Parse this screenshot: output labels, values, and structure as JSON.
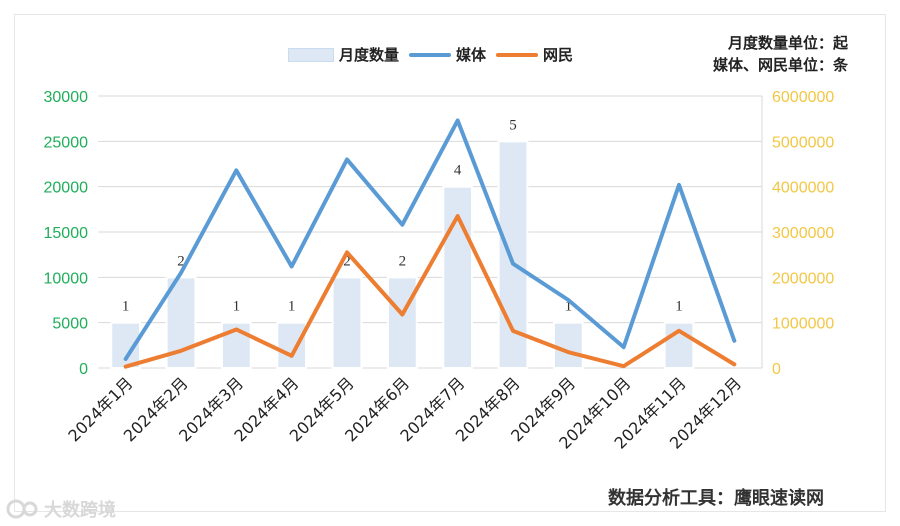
{
  "chart_data": {
    "type": "bar",
    "categories": [
      "2024年1月",
      "2024年2月",
      "2024年3月",
      "2024年4月",
      "2024年5月",
      "2024年6月",
      "2024年7月",
      "2024年8月",
      "2024年9月",
      "2024年10月",
      "2024年11月",
      "2024年12月"
    ],
    "series": [
      {
        "name": "月度数量",
        "type": "bar",
        "axis": "left",
        "values": [
          1,
          2,
          1,
          1,
          2,
          2,
          4,
          5,
          1,
          0,
          1,
          0
        ],
        "labels": [
          "1",
          "2",
          "1",
          "1",
          "2",
          "2",
          "4",
          "5",
          "1",
          "",
          "1",
          ""
        ],
        "color": "#dde8f4"
      },
      {
        "name": "媒体",
        "type": "line",
        "axis": "left",
        "values": [
          1000,
          10500,
          21800,
          11200,
          23000,
          15800,
          27300,
          11500,
          7500,
          2300,
          20200,
          3000
        ],
        "color": "#5b9bd5"
      },
      {
        "name": "网民",
        "type": "line",
        "axis": "right",
        "values": [
          30000,
          380000,
          850000,
          270000,
          2550000,
          1180000,
          3350000,
          820000,
          350000,
          40000,
          820000,
          80000
        ],
        "color": "#ed7d31"
      }
    ],
    "left_axis": {
      "ticks": [
        "0",
        "5000",
        "10000",
        "15000",
        "20000",
        "25000",
        "30000"
      ],
      "ylim": [
        0,
        30000
      ],
      "color": "#1fae5a"
    },
    "right_axis": {
      "ticks": [
        "0",
        "1000000",
        "2000000",
        "3000000",
        "4000000",
        "5000000",
        "6000000"
      ],
      "ylim": [
        0,
        6000000
      ],
      "color": "#f2c744"
    },
    "bar_unit_scale": 5000,
    "grid": true,
    "legend": "top"
  },
  "unit_note": {
    "line1": "月度数量单位：起",
    "line2": "媒体、网民单位：条"
  },
  "tool_note": "数据分析工具：鹰眼速读网",
  "watermark": "大数跨境"
}
